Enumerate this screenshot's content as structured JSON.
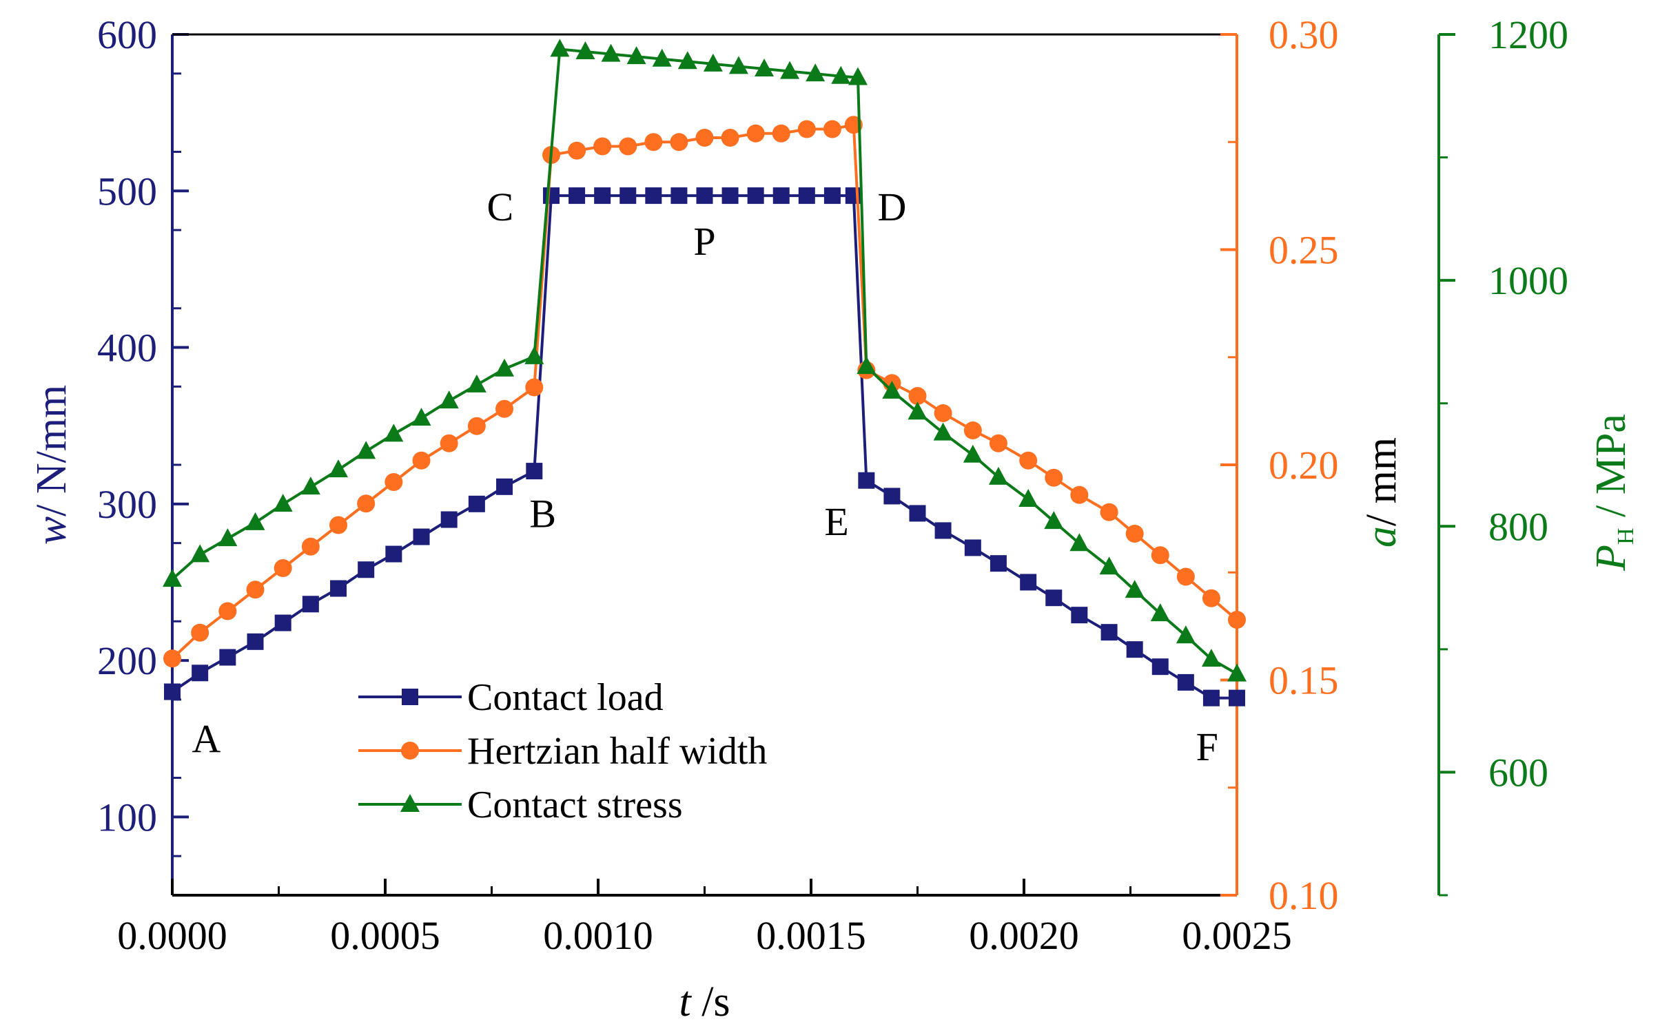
{
  "chart_data": {
    "type": "line",
    "title": "",
    "x": [
      5e-05,
      5e-05,
      5e-05
    ],
    "xlabel_italic": "t",
    "xlabel_unit": " /s",
    "xlim": [
      0,
      0.0025
    ],
    "x_ticks": [
      "0.0000",
      "0.0005",
      "0.0010",
      "0.0015",
      "0.0020",
      "0.0025"
    ],
    "axes": {
      "left": {
        "label_italic": "w",
        "label_unit": "/ N/mm",
        "ylim": [
          50,
          600
        ],
        "ticks": [
          "100",
          "200",
          "300",
          "400",
          "500",
          "600"
        ],
        "color": "#1c1e7a"
      },
      "right1": {
        "label_italic": "a",
        "label_unit": "/ mm",
        "ylim": [
          0.1,
          0.3
        ],
        "ticks": [
          "0.10",
          "0.15",
          "0.20",
          "0.25",
          "0.30"
        ],
        "color": "#ff6f1f"
      },
      "right2": {
        "label_italic": "P",
        "label_sub": "H",
        "label_unit": " / MPa",
        "ylim": [
          500,
          1200
        ],
        "ticks": [
          "600",
          "800",
          "1000",
          "1200"
        ],
        "color": "#0b7a18"
      }
    },
    "series": [
      {
        "name": "Contact load",
        "axis": "left",
        "marker": "square",
        "color": "#1c1e7a",
        "x": [
          0.0,
          6.5e-05,
          0.00013,
          0.000195,
          0.00026,
          0.000325,
          0.00039,
          0.000455,
          0.00052,
          0.000585,
          0.00065,
          0.000715,
          0.00078,
          0.00085,
          0.00089,
          0.00095,
          0.00101,
          0.00107,
          0.00113,
          0.00119,
          0.00125,
          0.00131,
          0.00137,
          0.00143,
          0.00149,
          0.00155,
          0.0016,
          0.00163,
          0.00169,
          0.00175,
          0.00181,
          0.00188,
          0.00194,
          0.00201,
          0.00207,
          0.00213,
          0.0022,
          0.00226,
          0.00232,
          0.00238,
          0.00244,
          0.0025
        ],
        "y": [
          180,
          192,
          202,
          212,
          224,
          236,
          246,
          258,
          268,
          279,
          290,
          300,
          311,
          321,
          497,
          497,
          497,
          497,
          497,
          497,
          497,
          497,
          497,
          497,
          497,
          497,
          497,
          315,
          305,
          294,
          283,
          272,
          262,
          250,
          240,
          229,
          218,
          207,
          196,
          186,
          176,
          176
        ]
      },
      {
        "name": "Hertzian half width",
        "axis": "right1",
        "marker": "circle",
        "color": "#ff6f1f",
        "x": [
          0.0,
          6.5e-05,
          0.00013,
          0.000195,
          0.00026,
          0.000325,
          0.00039,
          0.000455,
          0.00052,
          0.000585,
          0.00065,
          0.000715,
          0.00078,
          0.00085,
          0.00089,
          0.00095,
          0.00101,
          0.00107,
          0.00113,
          0.00119,
          0.00125,
          0.00131,
          0.00137,
          0.00143,
          0.00149,
          0.00155,
          0.0016,
          0.00163,
          0.00169,
          0.00175,
          0.00181,
          0.00188,
          0.00194,
          0.00201,
          0.00207,
          0.00213,
          0.0022,
          0.00226,
          0.00232,
          0.00238,
          0.00244,
          0.0025
        ],
        "y": [
          0.155,
          0.161,
          0.166,
          0.171,
          0.176,
          0.181,
          0.186,
          0.191,
          0.196,
          0.201,
          0.205,
          0.209,
          0.213,
          0.218,
          0.272,
          0.273,
          0.274,
          0.274,
          0.275,
          0.275,
          0.276,
          0.276,
          0.277,
          0.277,
          0.278,
          0.278,
          0.279,
          0.222,
          0.219,
          0.216,
          0.212,
          0.208,
          0.205,
          0.201,
          0.197,
          0.193,
          0.189,
          0.184,
          0.179,
          0.174,
          0.169,
          0.164
        ]
      },
      {
        "name": "Contact stress",
        "axis": "right2",
        "marker": "triangle",
        "color": "#0b7a18",
        "x": [
          0.0,
          6.5e-05,
          0.00013,
          0.000195,
          0.00026,
          0.000325,
          0.00039,
          0.000455,
          0.00052,
          0.000585,
          0.00065,
          0.000715,
          0.00078,
          0.00085,
          0.00091,
          0.00097,
          0.00103,
          0.00109,
          0.00115,
          0.00121,
          0.00127,
          0.00133,
          0.00139,
          0.00145,
          0.00151,
          0.00157,
          0.00161,
          0.00163,
          0.00169,
          0.00175,
          0.00181,
          0.00188,
          0.00194,
          0.00201,
          0.00207,
          0.00213,
          0.0022,
          0.00226,
          0.00232,
          0.00238,
          0.00244,
          0.0025
        ],
        "y": [
          757,
          777,
          790,
          803,
          818,
          832,
          846,
          861,
          875,
          888,
          902,
          915,
          928,
          938,
          1188,
          1186,
          1184,
          1182,
          1180,
          1178,
          1176,
          1174,
          1172,
          1170,
          1168,
          1166,
          1165,
          930,
          910,
          893,
          876,
          858,
          840,
          822,
          804,
          786,
          767,
          748,
          729,
          711,
          692,
          680
        ]
      }
    ],
    "annotations": [
      {
        "text": "A",
        "x": 8e-05,
        "y": 150
      },
      {
        "text": "B",
        "x": 0.00087,
        "y": 294
      },
      {
        "text": "C",
        "x": 0.00077,
        "y": 490
      },
      {
        "text": "D",
        "x": 0.00169,
        "y": 490
      },
      {
        "text": "P",
        "x": 0.00125,
        "y": 468
      },
      {
        "text": "E",
        "x": 0.00156,
        "y": 289
      },
      {
        "text": "F",
        "x": 0.00243,
        "y": 145
      }
    ],
    "legend": {
      "placement": "bottom-left",
      "entries": [
        "Contact load",
        "Hertzian half width",
        "Contact stress"
      ]
    }
  }
}
